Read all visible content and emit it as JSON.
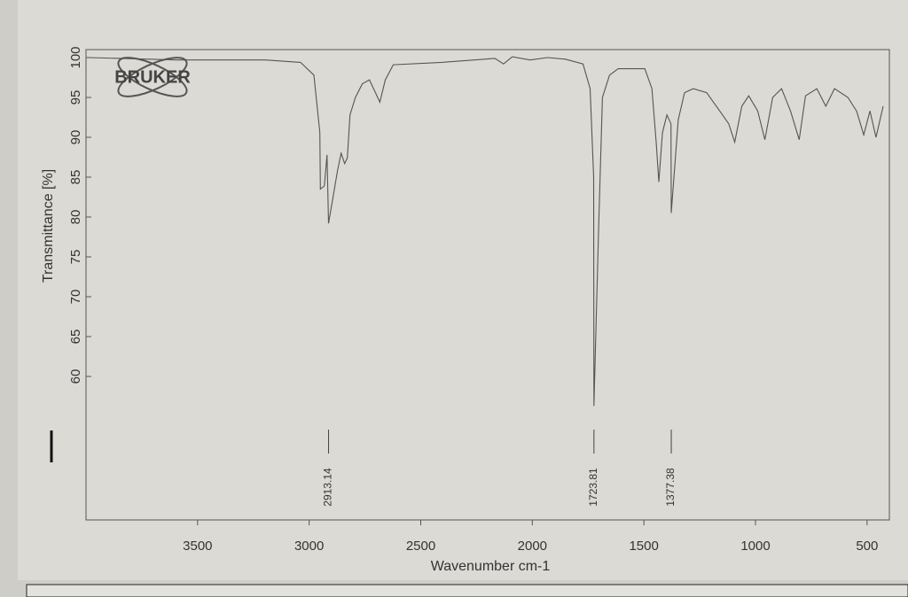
{
  "chart_data": {
    "type": "line",
    "logo": "BRUKER",
    "xlabel": "Wavenumber cm-1",
    "ylabel": "Transmittance [%]",
    "x": [
      3988,
      3593,
      3197,
      3039,
      2979,
      2952,
      2950,
      2932,
      2920,
      2913.14,
      2893,
      2873,
      2857,
      2841,
      2829,
      2817,
      2793,
      2762,
      2730,
      2703,
      2683,
      2659,
      2623,
      2406,
      2168,
      2129,
      2090,
      2010,
      1931,
      1852,
      1773,
      1741,
      1725,
      1723.81,
      1702,
      1686,
      1654,
      1615,
      1496,
      1464,
      1445,
      1433,
      1417,
      1397,
      1378.5,
      1377.38,
      1346,
      1318,
      1279,
      1219,
      1160,
      1120,
      1093,
      1061,
      1030,
      990,
      958,
      923,
      883,
      843,
      804,
      776,
      725,
      685,
      646,
      586,
      547,
      515,
      487,
      460,
      428
    ],
    "values": [
      100,
      99.7,
      99.7,
      99.4,
      97.8,
      90.6,
      83.5,
      83.9,
      87.8,
      79.2,
      82.5,
      85.8,
      88,
      86.7,
      87.4,
      92.8,
      95,
      96.7,
      97.2,
      95.6,
      94.4,
      97.2,
      99.1,
      99.4,
      99.9,
      99.2,
      100.1,
      99.7,
      100,
      99.8,
      99.2,
      96.1,
      85,
      56.3,
      79.4,
      95,
      97.8,
      98.6,
      98.6,
      96.1,
      89.4,
      84.4,
      90.6,
      92.8,
      91.7,
      80.5,
      92.2,
      95.6,
      96.1,
      95.6,
      93.3,
      91.7,
      89.4,
      93.9,
      95.2,
      93.3,
      89.7,
      95,
      96.1,
      93.3,
      89.7,
      95.2,
      96.1,
      93.9,
      96.1,
      95,
      93.3,
      90.3,
      93.3,
      90,
      93.9
    ],
    "color": "#555555",
    "xlim": [
      4000,
      400
    ],
    "ylim": [
      42,
      101
    ],
    "xticks": [
      3500,
      3000,
      2500,
      2000,
      1500,
      1000,
      500
    ],
    "yticks": [
      60,
      65,
      70,
      75,
      80,
      85,
      90,
      95,
      100
    ],
    "peak_labels": [
      2913.14,
      1723.81,
      1377.38
    ],
    "grid": false
  }
}
